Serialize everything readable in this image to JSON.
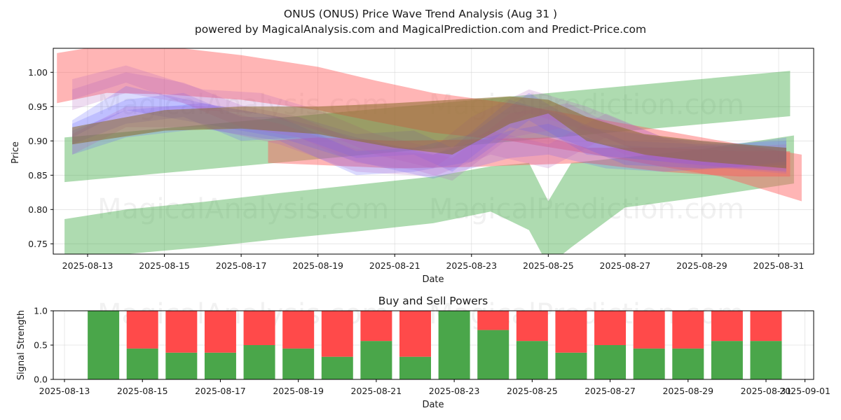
{
  "title": {
    "line1": "ONUS (ONUS) Price Wave Trend Analysis (Aug 31 )",
    "line2": "powered by MagicalAnalysis.com and MagicalPrediction.com and Predict-Price.com"
  },
  "watermarks": [
    "MagicalAnalysis.com",
    "MagicalPrediction.com"
  ],
  "colors": {
    "green_band": "#4caf50",
    "red_band": "#ff5a5a",
    "blue_band": "#5b5bff",
    "purple_band": "#b060c0",
    "buy": "#4aa64a",
    "sell": "#ff4a4a",
    "brown": "#8a6a2a"
  },
  "chart_data": [
    {
      "type": "area",
      "title": "",
      "xlabel": "Date",
      "ylabel": "Price",
      "ylim": [
        0.735,
        1.035
      ],
      "xlim_dates": [
        "2025-08-12.2",
        "2025-08-31.8"
      ],
      "x_ticks": [
        "2025-08-13",
        "2025-08-15",
        "2025-08-17",
        "2025-08-19",
        "2025-08-21",
        "2025-08-23",
        "2025-08-25",
        "2025-08-27",
        "2025-08-29",
        "2025-08-31"
      ],
      "y_ticks": [
        0.75,
        0.8,
        0.85,
        0.9,
        0.95,
        1.0
      ],
      "grid": true,
      "series": [
        {
          "name": "green-upper-band",
          "color": "green",
          "x": [
            12.4,
            31.3
          ],
          "lower": [
            0.84,
            0.936
          ],
          "upper": [
            0.905,
            1.002
          ]
        },
        {
          "name": "green-lower-band",
          "color": "green",
          "x": [
            12.4,
            14,
            16,
            18,
            20,
            22,
            23.5,
            24.5,
            25,
            25.6,
            27,
            29,
            31.4
          ],
          "lower": [
            0.726,
            0.735,
            0.745,
            0.757,
            0.768,
            0.78,
            0.797,
            0.77,
            0.718,
            0.745,
            0.803,
            0.818,
            0.838
          ],
          "upper": [
            0.786,
            0.8,
            0.811,
            0.824,
            0.836,
            0.848,
            0.863,
            0.868,
            0.812,
            0.868,
            0.876,
            0.888,
            0.908
          ]
        },
        {
          "name": "red-descending-band",
          "color": "red",
          "x": [
            12.2,
            13.5,
            15,
            17,
            19,
            20.5,
            22,
            24,
            26,
            28,
            29.5,
            31.6
          ],
          "lower": [
            0.955,
            0.97,
            0.968,
            0.96,
            0.945,
            0.928,
            0.912,
            0.9,
            0.882,
            0.862,
            0.848,
            0.812
          ],
          "upper": [
            1.028,
            1.04,
            1.038,
            1.025,
            1.008,
            0.988,
            0.97,
            0.955,
            0.935,
            0.915,
            0.9,
            0.88
          ]
        },
        {
          "name": "red-lower-band",
          "color": "red",
          "x": [
            17.7,
            19,
            21,
            23,
            25,
            26,
            28,
            30,
            31.3
          ],
          "lower": [
            0.868,
            0.865,
            0.86,
            0.862,
            0.866,
            0.868,
            0.855,
            0.848,
            0.848
          ],
          "upper": [
            0.9,
            0.905,
            0.9,
            0.902,
            0.905,
            0.89,
            0.89,
            0.885,
            0.885
          ]
        },
        {
          "name": "blue-band-a",
          "color": "blue",
          "x": [
            12.6,
            14,
            16,
            18,
            20,
            22,
            24,
            25,
            26.5,
            28,
            30,
            31.2
          ],
          "lower": [
            0.905,
            0.945,
            0.925,
            0.905,
            0.87,
            0.845,
            0.875,
            0.88,
            0.86,
            0.855,
            0.862,
            0.87
          ],
          "upper": [
            0.93,
            0.98,
            0.955,
            0.935,
            0.905,
            0.88,
            0.915,
            0.925,
            0.895,
            0.89,
            0.895,
            0.905
          ]
        },
        {
          "name": "blue-band-b",
          "color": "blue",
          "x": [
            12.6,
            14,
            16,
            18,
            20,
            21.5,
            23,
            24.5,
            26,
            28,
            30,
            31.2
          ],
          "lower": [
            0.88,
            0.905,
            0.918,
            0.9,
            0.85,
            0.855,
            0.87,
            0.93,
            0.88,
            0.87,
            0.86,
            0.855
          ],
          "upper": [
            0.915,
            0.945,
            0.955,
            0.935,
            0.885,
            0.89,
            0.91,
            0.97,
            0.92,
            0.905,
            0.895,
            0.89
          ]
        },
        {
          "name": "blue-band-c",
          "color": "blue",
          "x": [
            12.6,
            14,
            15.5,
            17,
            18.5,
            20,
            21.5,
            22.5,
            24,
            25.5,
            27,
            29,
            31.2
          ],
          "lower": [
            0.895,
            0.925,
            0.935,
            0.9,
            0.905,
            0.875,
            0.88,
            0.855,
            0.92,
            0.9,
            0.865,
            0.86,
            0.865
          ],
          "upper": [
            0.925,
            0.96,
            0.97,
            0.935,
            0.935,
            0.91,
            0.915,
            0.89,
            0.96,
            0.935,
            0.9,
            0.895,
            0.9
          ]
        },
        {
          "name": "purple-band-a",
          "color": "purple",
          "x": [
            12.6,
            14,
            16,
            17.5,
            19,
            20.5,
            22,
            23,
            24.5,
            26,
            28,
            30,
            31.2
          ],
          "lower": [
            0.96,
            0.985,
            0.945,
            0.94,
            0.915,
            0.88,
            0.86,
            0.9,
            0.94,
            0.915,
            0.87,
            0.858,
            0.852
          ],
          "upper": [
            0.99,
            1.01,
            0.975,
            0.97,
            0.945,
            0.91,
            0.89,
            0.935,
            0.975,
            0.95,
            0.905,
            0.888,
            0.885
          ]
        },
        {
          "name": "purple-band-b",
          "color": "purple",
          "x": [
            12.6,
            14,
            15.5,
            17,
            18.5,
            20,
            21.5,
            22.5,
            24,
            25.5,
            27,
            29,
            31.2
          ],
          "lower": [
            0.945,
            0.97,
            0.955,
            0.92,
            0.905,
            0.868,
            0.858,
            0.842,
            0.905,
            0.92,
            0.88,
            0.86,
            0.858
          ],
          "upper": [
            0.975,
            1.0,
            0.985,
            0.952,
            0.935,
            0.9,
            0.89,
            0.875,
            0.94,
            0.955,
            0.915,
            0.892,
            0.89
          ]
        },
        {
          "name": "purple-band-c",
          "color": "purple",
          "x": [
            12.6,
            14,
            16,
            18,
            20,
            22,
            23.5,
            25,
            26.5,
            28,
            30,
            31.2
          ],
          "lower": [
            0.88,
            0.92,
            0.92,
            0.895,
            0.855,
            0.848,
            0.88,
            0.86,
            0.905,
            0.87,
            0.86,
            0.862
          ],
          "upper": [
            0.91,
            0.95,
            0.95,
            0.925,
            0.888,
            0.88,
            0.915,
            0.895,
            0.94,
            0.905,
            0.892,
            0.895
          ]
        },
        {
          "name": "brown-band",
          "color": "brown",
          "x": [
            12.6,
            15,
            17,
            19,
            21,
            22.5,
            24,
            25,
            26,
            27.5,
            29,
            31.2
          ],
          "lower": [
            0.895,
            0.915,
            0.918,
            0.91,
            0.89,
            0.88,
            0.925,
            0.94,
            0.9,
            0.88,
            0.87,
            0.86
          ],
          "upper": [
            0.92,
            0.945,
            0.95,
            0.95,
            0.955,
            0.96,
            0.965,
            0.96,
            0.935,
            0.91,
            0.9,
            0.89
          ]
        }
      ]
    },
    {
      "type": "bar",
      "title": "Buy and Sell Powers",
      "xlabel": "Date",
      "ylabel": "Signal Strength",
      "ylim": [
        0,
        1.0
      ],
      "y_ticks": [
        "0.0",
        "0.5",
        "1.0"
      ],
      "x_ticks": [
        "2025-08-13",
        "2025-08-15",
        "2025-08-17",
        "2025-08-19",
        "2025-08-21",
        "2025-08-23",
        "2025-08-25",
        "2025-08-27",
        "2025-08-29",
        "2025-08-31",
        "2025-09-01"
      ],
      "grid": true,
      "categories": [
        "2025-08-14",
        "2025-08-15",
        "2025-08-16",
        "2025-08-17",
        "2025-08-18",
        "2025-08-19",
        "2025-08-20",
        "2025-08-21",
        "2025-08-22",
        "2025-08-23",
        "2025-08-24",
        "2025-08-25",
        "2025-08-26",
        "2025-08-27",
        "2025-08-28",
        "2025-08-29",
        "2025-08-30",
        "2025-08-31"
      ],
      "series": [
        {
          "name": "Buy",
          "values": [
            1.0,
            0.45,
            0.39,
            0.39,
            0.5,
            0.45,
            0.33,
            0.56,
            0.33,
            1.0,
            0.72,
            0.56,
            0.39,
            0.5,
            0.45,
            0.45,
            0.56,
            0.56
          ]
        },
        {
          "name": "Sell",
          "values": [
            0.0,
            0.55,
            0.61,
            0.61,
            0.5,
            0.55,
            0.67,
            0.44,
            0.67,
            0.0,
            0.28,
            0.44,
            0.61,
            0.5,
            0.55,
            0.55,
            0.44,
            0.44
          ]
        }
      ]
    }
  ]
}
